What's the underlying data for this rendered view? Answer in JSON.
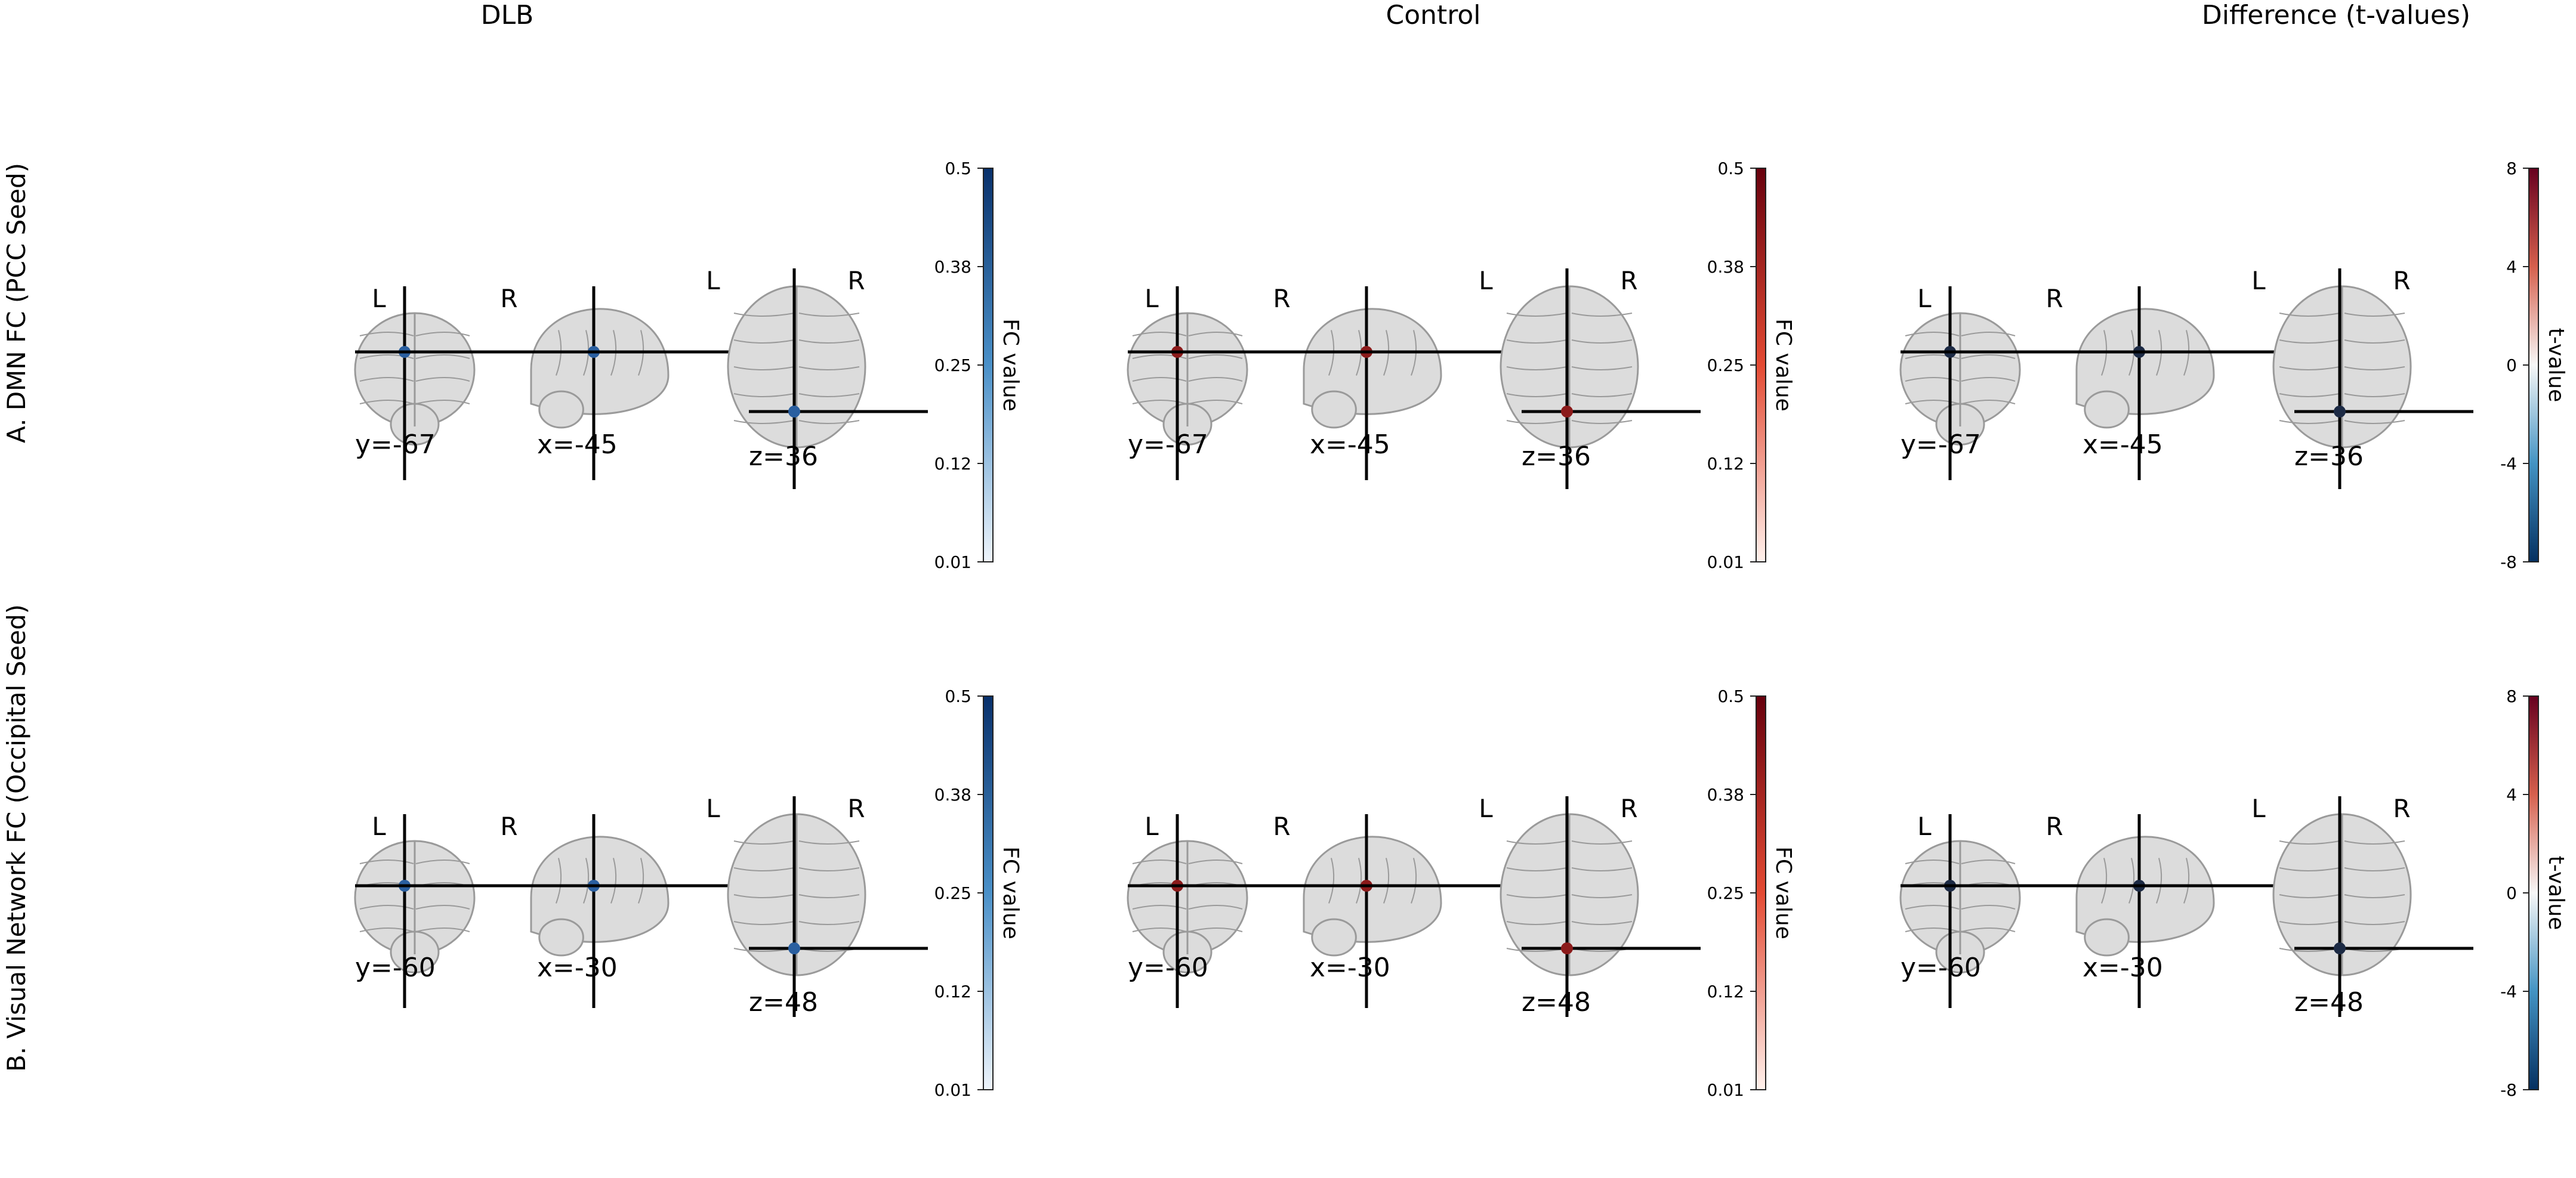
{
  "column_titles": [
    "DLB",
    "Control",
    "Difference (t-values)"
  ],
  "row_labels": [
    "A. DMN FC (PCC Seed)",
    "B. Visual Network FC (Occipital Seed)"
  ],
  "orientation_labels": {
    "left": "L",
    "right": "R"
  },
  "rows": [
    {
      "coronal": "y=-67",
      "sagittal": "x=-45",
      "axial": "z=36"
    },
    {
      "coronal": "y=-60",
      "sagittal": "x=-30",
      "axial": "z=48"
    }
  ],
  "colorbars": [
    {
      "label": "FC value",
      "ticks": [
        "0.5",
        "0.38",
        "0.25",
        "0.12",
        "0.01"
      ],
      "colormap": "blues",
      "marker_color": "#2a5fa0"
    },
    {
      "label": "FC value",
      "ticks": [
        "0.5",
        "0.38",
        "0.25",
        "0.12",
        "0.01"
      ],
      "colormap": "reds",
      "marker_color": "#8b1a1a"
    },
    {
      "label": "t-value",
      "ticks": [
        "8",
        "4",
        "0",
        "-4",
        "-8"
      ],
      "colormap": "rdbu",
      "marker_color": "#1c2a44"
    }
  ],
  "colors": {
    "blue_dark": "#08306b",
    "blue_mid": "#4a90c8",
    "blue_light": "#eef4fb",
    "red_dark": "#67000d",
    "red_mid": "#e34a33",
    "red_light": "#fff1ec",
    "diverge_neg": "#053061",
    "diverge_mid": "#f7f7f7",
    "diverge_pos": "#67001f",
    "brain_fill": "#dcdcdc",
    "brain_stroke": "#9a9a9a",
    "crosshair": "#000000"
  }
}
